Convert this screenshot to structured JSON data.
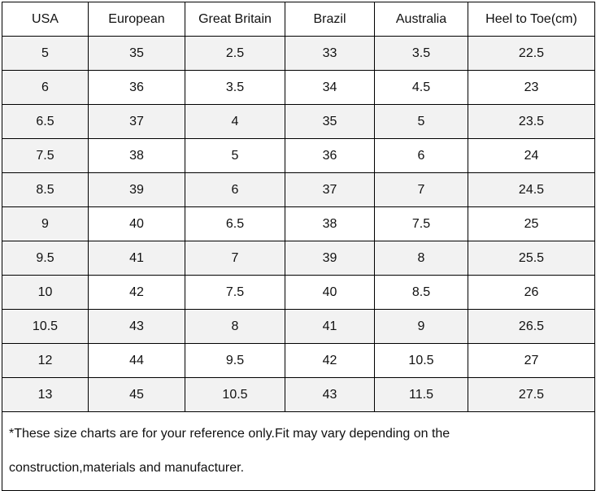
{
  "table": {
    "header": [
      "USA",
      "European",
      "Great Britain",
      "Brazil",
      "Australia",
      "Heel to Toe(cm)"
    ],
    "rows": [
      [
        "5",
        "35",
        "2.5",
        "33",
        "3.5",
        "22.5"
      ],
      [
        "6",
        "36",
        "3.5",
        "34",
        "4.5",
        "23"
      ],
      [
        "6.5",
        "37",
        "4",
        "35",
        "5",
        "23.5"
      ],
      [
        "7.5",
        "38",
        "5",
        "36",
        "6",
        "24"
      ],
      [
        "8.5",
        "39",
        "6",
        "37",
        "7",
        "24.5"
      ],
      [
        "9",
        "40",
        "6.5",
        "38",
        "7.5",
        "25"
      ],
      [
        "9.5",
        "41",
        "7",
        "39",
        "8",
        "25.5"
      ],
      [
        "10",
        "42",
        "7.5",
        "40",
        "8.5",
        "26"
      ],
      [
        "10.5",
        "43",
        "8",
        "41",
        "9",
        "26.5"
      ],
      [
        "12",
        "44",
        "9.5",
        "42",
        "10.5",
        "27"
      ],
      [
        "13",
        "45",
        "10.5",
        "43",
        "11.5",
        "27.5"
      ]
    ],
    "note": [
      "*These size charts are for your reference only.Fit may vary depending on the",
      "construction,materials and manufacturer."
    ]
  }
}
